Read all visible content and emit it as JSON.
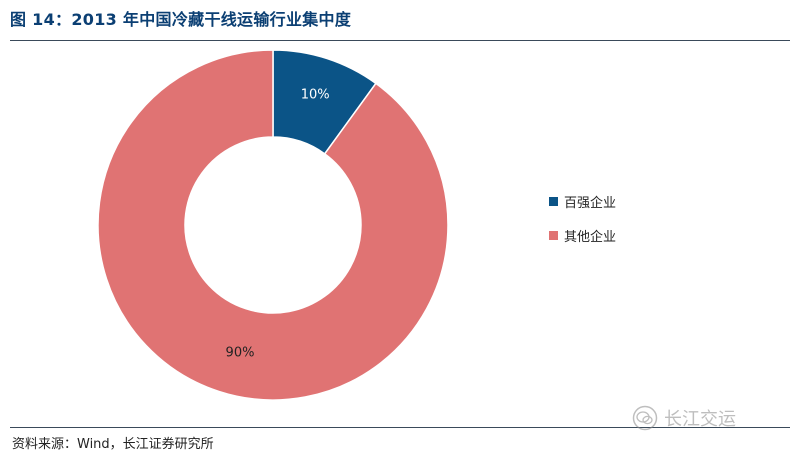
{
  "title": "图 14：2013 年中国冷藏干线运输行业集中度",
  "source": "资料来源：Wind，长江证券研究所",
  "watermark": "长江交运",
  "chart_data": {
    "type": "pie",
    "donut": true,
    "legend_position": "right",
    "categories": [
      "百强企业",
      "其他企业"
    ],
    "values": [
      10,
      90
    ],
    "labels": [
      "10%",
      "90%"
    ],
    "colors": [
      "#0b5487",
      "#e07373"
    ]
  }
}
